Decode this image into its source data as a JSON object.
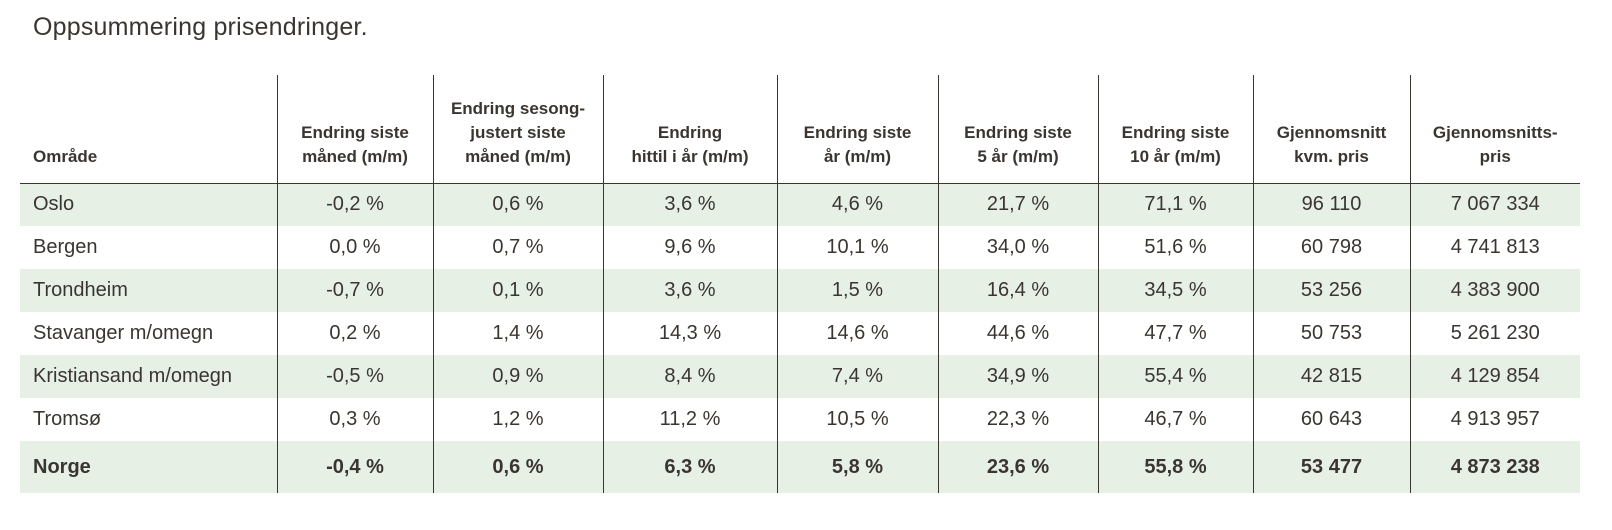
{
  "title": "Oppsummering prisendringer.",
  "colors": {
    "row_highlight": "#e6f0e5",
    "text": "#3a3531",
    "line": "#3b352f",
    "background": "#ffffff"
  },
  "table": {
    "columns": [
      {
        "label": "Område",
        "align": "left"
      },
      {
        "label": "Endring siste\nmåned (m/m)",
        "align": "center"
      },
      {
        "label": "Endring sesong-\njustert siste\nmåned (m/m)",
        "align": "center"
      },
      {
        "label": "Endring\nhittil i år (m/m)",
        "align": "center"
      },
      {
        "label": "Endring siste\når (m/m)",
        "align": "center"
      },
      {
        "label": "Endring siste\n5 år (m/m)",
        "align": "center"
      },
      {
        "label": "Endring siste\n10 år (m/m)",
        "align": "center"
      },
      {
        "label": "Gjennomsnitt\nkvm. pris",
        "align": "center"
      },
      {
        "label": "Gjennomsnitts-\npris",
        "align": "center"
      }
    ],
    "rows": [
      {
        "area": "Oslo",
        "values": [
          "-0,2 %",
          "0,6 %",
          "3,6 %",
          "4,6 %",
          "21,7 %",
          "71,1 %",
          "96 110",
          "7 067 334"
        ],
        "highlighted": true,
        "is_total": false
      },
      {
        "area": "Bergen",
        "values": [
          "0,0 %",
          "0,7 %",
          "9,6 %",
          "10,1 %",
          "34,0 %",
          "51,6 %",
          "60 798",
          "4 741 813"
        ],
        "highlighted": false,
        "is_total": false
      },
      {
        "area": "Trondheim",
        "values": [
          "-0,7 %",
          "0,1 %",
          "3,6 %",
          "1,5 %",
          "16,4 %",
          "34,5 %",
          "53 256",
          "4 383 900"
        ],
        "highlighted": true,
        "is_total": false
      },
      {
        "area": "Stavanger m/omegn",
        "values": [
          "0,2 %",
          "1,4 %",
          "14,3 %",
          "14,6 %",
          "44,6 %",
          "47,7 %",
          "50 753",
          "5 261 230"
        ],
        "highlighted": false,
        "is_total": false
      },
      {
        "area": "Kristiansand m/omegn",
        "values": [
          "-0,5 %",
          "0,9 %",
          "8,4 %",
          "7,4 %",
          "34,9 %",
          "55,4 %",
          "42 815",
          "4 129 854"
        ],
        "highlighted": true,
        "is_total": false
      },
      {
        "area": "Tromsø",
        "values": [
          "0,3 %",
          "1,2 %",
          "11,2 %",
          "10,5 %",
          "22,3 %",
          "46,7 %",
          "60 643",
          "4 913 957"
        ],
        "highlighted": false,
        "is_total": false
      },
      {
        "area": "Norge",
        "values": [
          "-0,4 %",
          "0,6 %",
          "6,3 %",
          "5,8 %",
          "23,6 %",
          "55,8 %",
          "53 477",
          "4 873 238"
        ],
        "highlighted": true,
        "is_total": true
      }
    ]
  }
}
